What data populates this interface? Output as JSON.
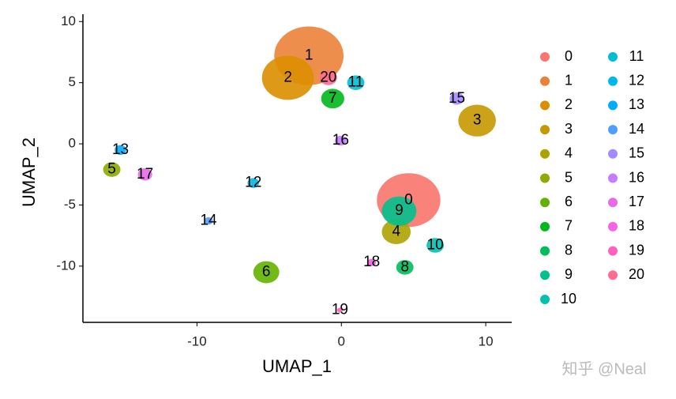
{
  "chart_data": {
    "type": "scatter",
    "xlabel": "UMAP_1",
    "ylabel": "UMAP_2",
    "xlim": [
      -17.9,
      11.8
    ],
    "ylim": [
      -14.6,
      10.6
    ],
    "xticks": [
      -10,
      0,
      10
    ],
    "yticks": [
      -10,
      -5,
      0,
      5,
      10
    ],
    "grid": false,
    "legend": "right",
    "watermark": "知乎 @Neal",
    "series": [
      {
        "name": "0",
        "color": "#F8766D",
        "x": [
          4.66
        ],
        "values": [
          -4.6
        ],
        "sizes": [
          2.2
        ]
      },
      {
        "name": "1",
        "color": "#EC8239",
        "x": [
          -2.25
        ],
        "values": [
          7.2
        ],
        "sizes": [
          2.4
        ]
      },
      {
        "name": "2",
        "color": "#DB8E00",
        "x": [
          -3.7
        ],
        "values": [
          5.4
        ],
        "sizes": [
          1.8
        ]
      },
      {
        "name": "3",
        "color": "#C79800",
        "x": [
          9.4
        ],
        "values": [
          1.9
        ],
        "sizes": [
          1.3
        ]
      },
      {
        "name": "4",
        "color": "#AEA200",
        "x": [
          3.8
        ],
        "values": [
          -7.2
        ],
        "sizes": [
          1.0
        ]
      },
      {
        "name": "5",
        "color": "#8FAA00",
        "x": [
          -15.9
        ],
        "values": [
          -2.1
        ],
        "sizes": [
          0.6
        ]
      },
      {
        "name": "6",
        "color": "#64B200",
        "x": [
          -5.2
        ],
        "values": [
          -10.5
        ],
        "sizes": [
          0.9
        ]
      },
      {
        "name": "7",
        "color": "#00B81B",
        "x": [
          -0.6
        ],
        "values": [
          3.7
        ],
        "sizes": [
          0.8
        ]
      },
      {
        "name": "8",
        "color": "#00BD5C",
        "x": [
          4.4
        ],
        "values": [
          -10.1
        ],
        "sizes": [
          0.6
        ]
      },
      {
        "name": "9",
        "color": "#00C08E",
        "x": [
          4.0
        ],
        "values": [
          -5.5
        ],
        "sizes": [
          1.2
        ]
      },
      {
        "name": "10",
        "color": "#00C1B2",
        "x": [
          6.5
        ],
        "values": [
          -8.3
        ],
        "sizes": [
          0.6
        ]
      },
      {
        "name": "11",
        "color": "#00BFD0",
        "x": [
          1.0
        ],
        "values": [
          5.0
        ],
        "sizes": [
          0.6
        ]
      },
      {
        "name": "12",
        "color": "#00B8E7",
        "x": [
          -6.1
        ],
        "values": [
          -3.2
        ],
        "sizes": [
          0.4
        ]
      },
      {
        "name": "13",
        "color": "#00ACFC",
        "x": [
          -15.3
        ],
        "values": [
          -0.5
        ],
        "sizes": [
          0.4
        ]
      },
      {
        "name": "14",
        "color": "#529EFF",
        "x": [
          -9.2
        ],
        "values": [
          -6.3
        ],
        "sizes": [
          0.3
        ]
      },
      {
        "name": "15",
        "color": "#A58AFF",
        "x": [
          8.0
        ],
        "values": [
          3.7
        ],
        "sizes": [
          0.5
        ]
      },
      {
        "name": "16",
        "color": "#C77CFF",
        "x": [
          -0.05
        ],
        "values": [
          0.26
        ],
        "sizes": [
          0.4
        ]
      },
      {
        "name": "17",
        "color": "#E56BE8",
        "x": [
          -13.6
        ],
        "values": [
          -2.5
        ],
        "sizes": [
          0.5
        ]
      },
      {
        "name": "18",
        "color": "#F564E3",
        "x": [
          2.1
        ],
        "values": [
          -9.7
        ],
        "sizes": [
          0.3
        ]
      },
      {
        "name": "19",
        "color": "#FF62BC",
        "x": [
          -0.1
        ],
        "values": [
          -13.6
        ],
        "sizes": [
          0.2
        ]
      },
      {
        "name": "20",
        "color": "#FF6C91",
        "x": [
          -0.9
        ],
        "values": [
          5.4
        ],
        "sizes": [
          0.6
        ]
      }
    ]
  }
}
